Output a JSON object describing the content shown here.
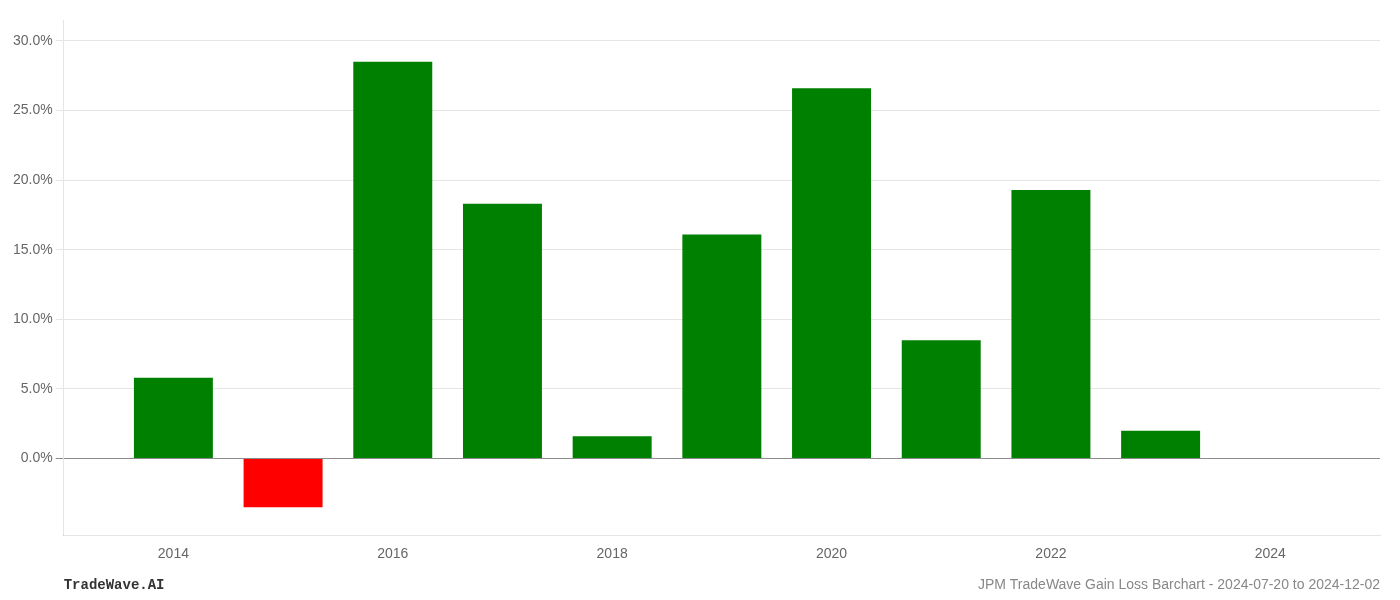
{
  "chart_data": {
    "type": "bar",
    "x": [
      2014,
      2015,
      2016,
      2017,
      2018,
      2019,
      2020,
      2021,
      2022,
      2023
    ],
    "values": [
      0.058,
      -0.035,
      0.285,
      0.183,
      0.016,
      0.161,
      0.266,
      0.085,
      0.193,
      0.02
    ],
    "colors": [
      "#008000",
      "#ff0000",
      "#008000",
      "#008000",
      "#008000",
      "#008000",
      "#008000",
      "#008000",
      "#008000",
      "#008000"
    ],
    "xlim": [
      2013.0,
      2025.0
    ],
    "xticks": [
      2014,
      2016,
      2018,
      2020,
      2022,
      2024
    ],
    "ylim": [
      -0.055,
      0.315
    ],
    "yticks": [
      {
        "value": 0.0,
        "label": "0.0%"
      },
      {
        "value": 0.05,
        "label": "5.0%"
      },
      {
        "value": 0.1,
        "label": "10.0%"
      },
      {
        "value": 0.15,
        "label": "15.0%"
      },
      {
        "value": 0.2,
        "label": "20.0%"
      },
      {
        "value": 0.25,
        "label": "25.0%"
      },
      {
        "value": 0.3,
        "label": "30.0%"
      }
    ],
    "grid": "y",
    "annotations": [
      "TradeWave.AI",
      "JPM TradeWave Gain Loss Barchart - 2024-07-20 to 2024-12-02"
    ]
  }
}
